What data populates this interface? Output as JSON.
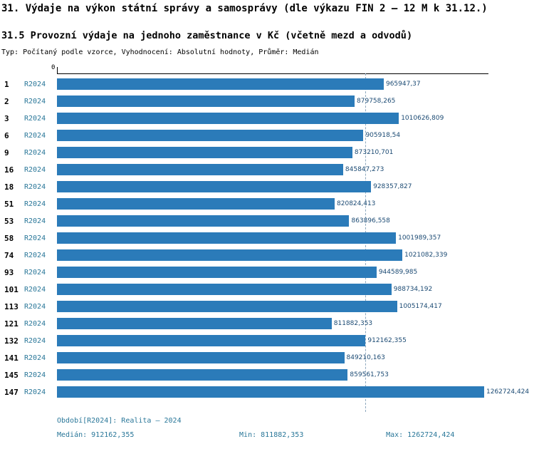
{
  "title": "31. Výdaje na výkon státní správy a samosprávy (dle výkazu FIN 2 – 12 M k 31.12.)",
  "subtitle": "31.5 Provozní výdaje na jednoho zaměstnance v Kč (včetně mezd a odvodů)",
  "meta": "Typ: Počítaný podle vzorce, Vyhodnocení: Absolutní hodnoty, Průměr: Medián",
  "chart_data": {
    "type": "bar",
    "orientation": "horizontal",
    "title": "31.5 Provozní výdaje na jednoho zaměstnance v Kč (včetně mezd a odvodů)",
    "series_label": "R2024",
    "axis_zero_label": "0",
    "categories": [
      "1",
      "2",
      "3",
      "6",
      "9",
      "16",
      "18",
      "51",
      "53",
      "58",
      "74",
      "93",
      "101",
      "113",
      "121",
      "132",
      "141",
      "145",
      "147"
    ],
    "values": [
      965947.37,
      879758.265,
      1010626.809,
      905918.54,
      873210.701,
      845847.273,
      928357.827,
      820824.413,
      863896.558,
      1001989.357,
      1021082.339,
      944589.985,
      988734.192,
      1005174.417,
      811882.353,
      912162.355,
      849210.163,
      859561.753,
      1262724.424
    ],
    "value_labels": [
      "965947,37",
      "879758,265",
      "1010626,809",
      "905918,54",
      "873210,701",
      "845847,273",
      "928357,827",
      "820824,413",
      "863896,558",
      "1001989,357",
      "1021082,339",
      "944589,985",
      "988734,192",
      "1005174,417",
      "811882,353",
      "912162,355",
      "849210,163",
      "859561,753",
      "1262724,424"
    ],
    "median": 912162.355,
    "min": 811882.353,
    "max": 1262724.424,
    "xlim": [
      0,
      1262724.424
    ],
    "bar_color": "#2b7bb9",
    "median_line": true,
    "legend_position": "none"
  },
  "footer": {
    "period": "Období[R2024]: Realita – 2024",
    "median": "Medián: 912162,355",
    "min": "Min: 811882,353",
    "max": "Max: 1262724,424"
  }
}
